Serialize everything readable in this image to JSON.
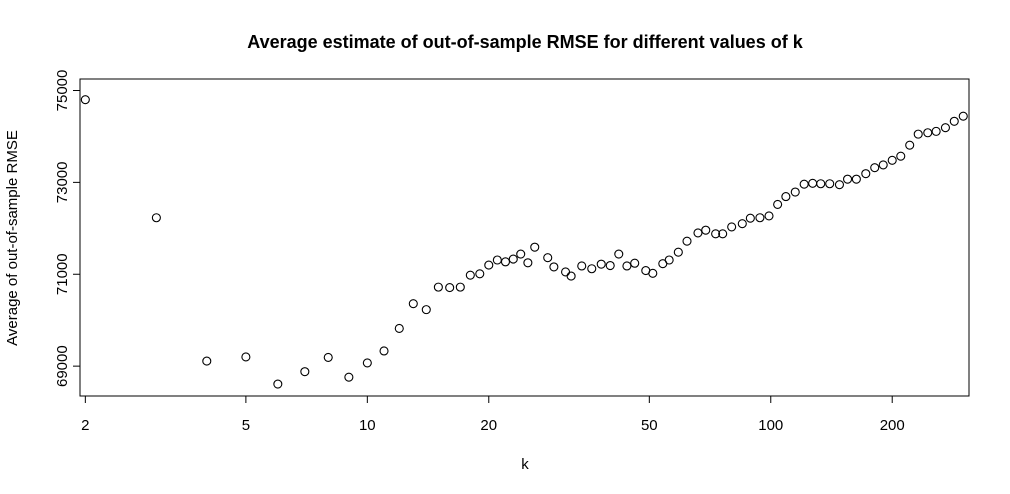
{
  "chart_data": {
    "type": "scatter",
    "title": "Average estimate of out-of-sample RMSE for different values of k",
    "xlabel": "k",
    "ylabel": "Average of out-of-sample RMSE",
    "x_scale": "log",
    "xlim": [
      1.94,
      310
    ],
    "ylim": [
      68350,
      75250
    ],
    "x_ticks": [
      2,
      5,
      10,
      20,
      50,
      100,
      200
    ],
    "x_tick_labels": [
      "2",
      "5",
      "10",
      "20",
      "50",
      "100",
      "200"
    ],
    "y_ticks": [
      69000,
      71000,
      73000,
      75000
    ],
    "y_tick_labels": [
      "69000",
      "71000",
      "73000",
      "75000"
    ],
    "grid": false,
    "legend": "none",
    "marker": "open-circle",
    "marker_color": "#000000",
    "points": [
      {
        "x": 2,
        "y": 74800
      },
      {
        "x": 3,
        "y": 72230
      },
      {
        "x": 4,
        "y": 69110
      },
      {
        "x": 5,
        "y": 69200
      },
      {
        "x": 6,
        "y": 68610
      },
      {
        "x": 7,
        "y": 68880
      },
      {
        "x": 8,
        "y": 69190
      },
      {
        "x": 9,
        "y": 68760
      },
      {
        "x": 10,
        "y": 69070
      },
      {
        "x": 11,
        "y": 69330
      },
      {
        "x": 12,
        "y": 69820
      },
      {
        "x": 13,
        "y": 70360
      },
      {
        "x": 14,
        "y": 70230
      },
      {
        "x": 15,
        "y": 70720
      },
      {
        "x": 16,
        "y": 70710
      },
      {
        "x": 17,
        "y": 70720
      },
      {
        "x": 18,
        "y": 70980
      },
      {
        "x": 19,
        "y": 71010
      },
      {
        "x": 20,
        "y": 71200
      },
      {
        "x": 21,
        "y": 71310
      },
      {
        "x": 22,
        "y": 71270
      },
      {
        "x": 23,
        "y": 71330
      },
      {
        "x": 24,
        "y": 71440
      },
      {
        "x": 25,
        "y": 71250
      },
      {
        "x": 26,
        "y": 71590
      },
      {
        "x": 28,
        "y": 71360
      },
      {
        "x": 29,
        "y": 71160
      },
      {
        "x": 31,
        "y": 71050
      },
      {
        "x": 32,
        "y": 70960
      },
      {
        "x": 34,
        "y": 71180
      },
      {
        "x": 36,
        "y": 71120
      },
      {
        "x": 38,
        "y": 71220
      },
      {
        "x": 40,
        "y": 71190
      },
      {
        "x": 42,
        "y": 71440
      },
      {
        "x": 44,
        "y": 71180
      },
      {
        "x": 46,
        "y": 71240
      },
      {
        "x": 49,
        "y": 71080
      },
      {
        "x": 51,
        "y": 71020
      },
      {
        "x": 54,
        "y": 71230
      },
      {
        "x": 56,
        "y": 71310
      },
      {
        "x": 59,
        "y": 71480
      },
      {
        "x": 62,
        "y": 71720
      },
      {
        "x": 66,
        "y": 71900
      },
      {
        "x": 69,
        "y": 71960
      },
      {
        "x": 73,
        "y": 71880
      },
      {
        "x": 76,
        "y": 71880
      },
      {
        "x": 80,
        "y": 72030
      },
      {
        "x": 85,
        "y": 72100
      },
      {
        "x": 89,
        "y": 72220
      },
      {
        "x": 94,
        "y": 72230
      },
      {
        "x": 99,
        "y": 72270
      },
      {
        "x": 104,
        "y": 72520
      },
      {
        "x": 109,
        "y": 72690
      },
      {
        "x": 115,
        "y": 72790
      },
      {
        "x": 121,
        "y": 72960
      },
      {
        "x": 127,
        "y": 72980
      },
      {
        "x": 133,
        "y": 72970
      },
      {
        "x": 140,
        "y": 72970
      },
      {
        "x": 148,
        "y": 72950
      },
      {
        "x": 155,
        "y": 73070
      },
      {
        "x": 163,
        "y": 73070
      },
      {
        "x": 172,
        "y": 73190
      },
      {
        "x": 181,
        "y": 73320
      },
      {
        "x": 190,
        "y": 73380
      },
      {
        "x": 200,
        "y": 73480
      },
      {
        "x": 210,
        "y": 73570
      },
      {
        "x": 221,
        "y": 73810
      },
      {
        "x": 232,
        "y": 74050
      },
      {
        "x": 245,
        "y": 74080
      },
      {
        "x": 257,
        "y": 74110
      },
      {
        "x": 271,
        "y": 74190
      },
      {
        "x": 285,
        "y": 74330
      },
      {
        "x": 300,
        "y": 74440
      }
    ]
  }
}
